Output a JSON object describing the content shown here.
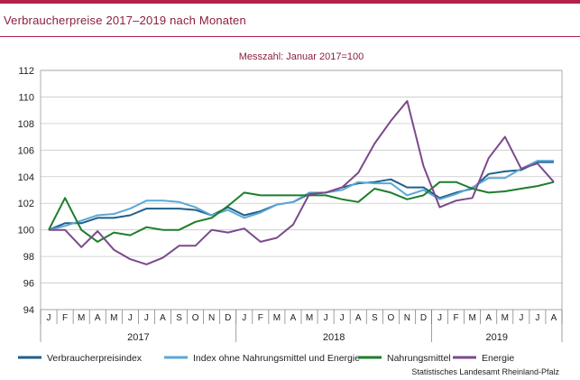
{
  "header": {
    "title": "Verbraucherpreise 2017–2019 nach Monaten"
  },
  "footer": {
    "source": "Statistisches Landesamt Rheinland-Pfalz"
  },
  "colors": {
    "Verbraucherpreisindex": "#1f5f8b",
    "Index ohne Nahrungsmittel und Energie": "#5aa8d6",
    "Nahrungsmittel": "#1e7d2c",
    "Energie": "#7b4a8c"
  },
  "chart_data": {
    "type": "line",
    "subtitle": "Messzahl: Januar 2017=100",
    "ylim": [
      94,
      112
    ],
    "yticks": [
      94,
      96,
      98,
      100,
      102,
      104,
      106,
      108,
      110,
      112
    ],
    "grid": true,
    "legend_position": "bottom",
    "months": [
      "J",
      "F",
      "M",
      "A",
      "M",
      "J",
      "J",
      "A",
      "S",
      "O",
      "N",
      "D",
      "J",
      "F",
      "M",
      "A",
      "M",
      "J",
      "J",
      "A",
      "S",
      "O",
      "N",
      "D",
      "J",
      "F",
      "M",
      "A",
      "M",
      "J",
      "J",
      "A"
    ],
    "years": [
      {
        "label": "2017",
        "start": 0,
        "end": 11
      },
      {
        "label": "2018",
        "start": 12,
        "end": 23
      },
      {
        "label": "2019",
        "start": 24,
        "end": 31
      }
    ],
    "series": [
      {
        "name": "Verbraucherpreisindex",
        "values": [
          100.0,
          100.5,
          100.5,
          100.9,
          100.9,
          101.1,
          101.6,
          101.6,
          101.6,
          101.5,
          101.1,
          101.7,
          101.1,
          101.4,
          101.9,
          102.1,
          102.7,
          102.8,
          103.2,
          103.5,
          103.6,
          103.8,
          103.2,
          103.2,
          102.4,
          102.8,
          103.1,
          104.2,
          104.4,
          104.5,
          105.1,
          105.1
        ]
      },
      {
        "name": "Index ohne Nahrungsmittel und Energie",
        "values": [
          100.0,
          100.3,
          100.7,
          101.1,
          101.2,
          101.6,
          102.2,
          102.2,
          102.1,
          101.7,
          101.1,
          101.5,
          100.9,
          101.3,
          101.9,
          102.1,
          102.8,
          102.8,
          103.0,
          103.6,
          103.5,
          103.5,
          102.6,
          103.0,
          102.3,
          102.7,
          103.2,
          103.9,
          103.9,
          104.6,
          105.2,
          105.2
        ]
      },
      {
        "name": "Nahrungsmittel",
        "values": [
          100.0,
          102.4,
          100.0,
          99.1,
          99.8,
          99.6,
          100.2,
          100.0,
          100.0,
          100.6,
          100.9,
          101.8,
          102.8,
          102.6,
          102.6,
          102.6,
          102.6,
          102.6,
          102.3,
          102.1,
          103.1,
          102.8,
          102.3,
          102.6,
          103.6,
          103.6,
          103.1,
          102.8,
          102.9,
          103.1,
          103.3,
          103.6
        ]
      },
      {
        "name": "Energie",
        "values": [
          100.0,
          100.0,
          98.7,
          99.9,
          98.5,
          97.8,
          97.4,
          97.9,
          98.8,
          98.8,
          100.0,
          99.8,
          100.1,
          99.1,
          99.4,
          100.4,
          102.7,
          102.8,
          103.2,
          104.3,
          106.5,
          108.2,
          109.7,
          104.8,
          101.7,
          102.2,
          102.4,
          105.4,
          107.0,
          104.6,
          105.0,
          103.6
        ]
      }
    ]
  }
}
